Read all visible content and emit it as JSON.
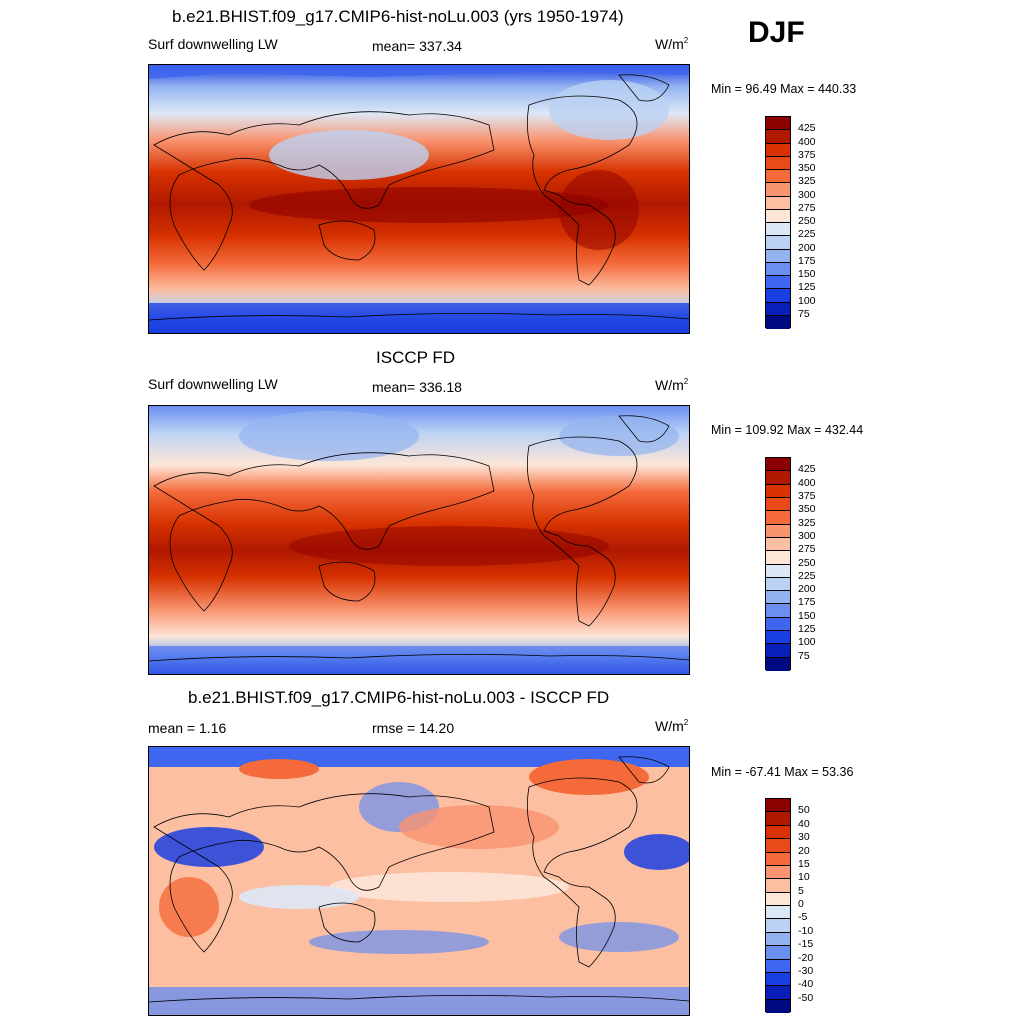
{
  "season": "DJF",
  "panels": [
    {
      "title": "b.e21.BHIST.f09_g17.CMIP6-hist-noLu.003 (yrs 1950-1974)",
      "left_label": "Surf downwelling LW",
      "center_label": "mean= 337.34",
      "units": "W/m",
      "units_sup": "2",
      "minmax": "Min =  96.49 Max = 440.33",
      "kind": "abs"
    },
    {
      "title": "ISCCP FD",
      "left_label": "Surf downwelling LW",
      "center_label": "mean= 336.18",
      "units": "W/m",
      "units_sup": "2",
      "minmax": "Min = 109.92 Max = 432.44",
      "kind": "abs"
    },
    {
      "title": "b.e21.BHIST.f09_g17.CMIP6-hist-noLu.003 - ISCCP FD",
      "left_label": "mean =   1.16",
      "center_label": "rmse =  14.20",
      "units": "W/m",
      "units_sup": "2",
      "minmax": "Min = -67.41 Max =  53.36",
      "kind": "diff"
    }
  ],
  "colorbars": {
    "abs": {
      "labels": [
        "425",
        "400",
        "375",
        "350",
        "325",
        "300",
        "275",
        "250",
        "225",
        "200",
        "175",
        "150",
        "125",
        "100",
        "75"
      ],
      "colors": [
        "#8b0000",
        "#b01800",
        "#d73200",
        "#e84a1a",
        "#f46a3a",
        "#f99470",
        "#fcbfa2",
        "#fde6d8",
        "#dde8f6",
        "#bcd2f4",
        "#93b3f0",
        "#6a8ff0",
        "#3f66ee",
        "#1a3fe0",
        "#0a1fb8",
        "#000a80"
      ]
    },
    "diff": {
      "labels": [
        "50",
        "40",
        "30",
        "20",
        "15",
        "10",
        "5",
        "0",
        "-5",
        "-10",
        "-15",
        "-20",
        "-30",
        "-40",
        "-50"
      ],
      "colors": [
        "#8b0000",
        "#b01800",
        "#d73200",
        "#e84a1a",
        "#f46a3a",
        "#f99470",
        "#fcbfa2",
        "#fde6d8",
        "#dde8f6",
        "#bcd2f4",
        "#93b3f0",
        "#6a8ff0",
        "#3f66ee",
        "#1a3fe0",
        "#0a1fb8",
        "#000a80"
      ]
    }
  }
}
